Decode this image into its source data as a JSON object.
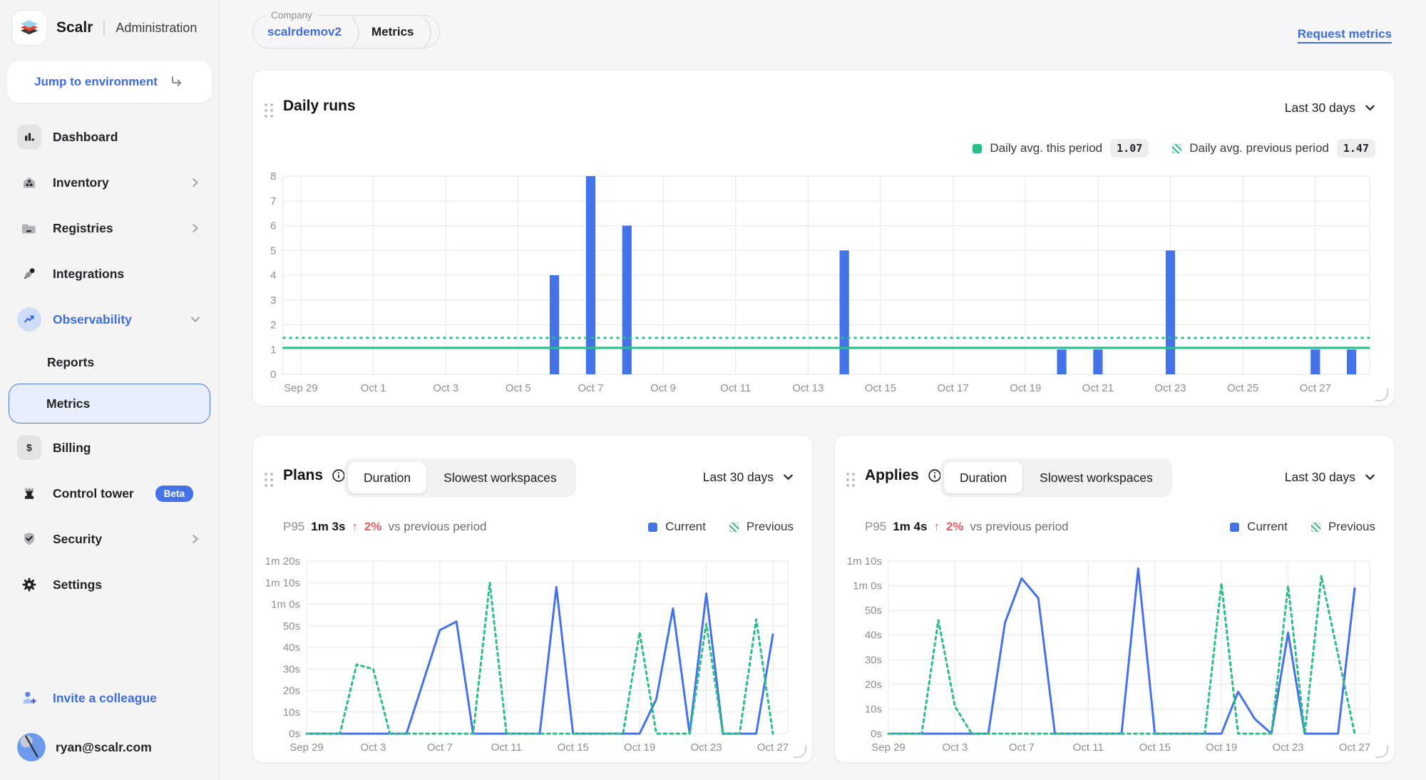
{
  "app": {
    "brand": "Scalr",
    "section": "Administration"
  },
  "sidebar": {
    "jump": {
      "label": "Jump to environment"
    },
    "items": [
      {
        "label": "Dashboard"
      },
      {
        "label": "Inventory"
      },
      {
        "label": "Registries"
      },
      {
        "label": "Integrations"
      },
      {
        "label": "Observability"
      },
      {
        "label": "Reports"
      },
      {
        "label": "Metrics"
      },
      {
        "label": "Billing"
      },
      {
        "label": "Control tower",
        "badge": "Beta"
      },
      {
        "label": "Security"
      },
      {
        "label": "Settings"
      }
    ],
    "invite": {
      "label": "Invite a colleague"
    },
    "user": {
      "email": "ryan@scalr.com"
    }
  },
  "topbar": {
    "breadcrumb": {
      "group_label": "Company",
      "account": "scalrdemov2",
      "page": "Metrics"
    },
    "request_link": "Request metrics"
  },
  "cards": {
    "daily_runs": {
      "title": "Daily runs",
      "range": "Last 30 days",
      "legend": [
        {
          "label": "Daily avg. this period",
          "value": "1.07"
        },
        {
          "label": "Daily avg. previous period",
          "value": "1.47"
        }
      ]
    },
    "plans": {
      "title": "Plans",
      "tabs": [
        "Duration",
        "Slowest workspaces"
      ],
      "active_tab": "Duration",
      "range": "Last 30 days",
      "stat": {
        "metric": "P95",
        "value": "1m 3s",
        "delta_arrow": "↑",
        "delta": "2%",
        "suffix": "vs previous period"
      },
      "legend": [
        {
          "label": "Current"
        },
        {
          "label": "Previous"
        }
      ]
    },
    "applies": {
      "title": "Applies",
      "tabs": [
        "Duration",
        "Slowest workspaces"
      ],
      "active_tab": "Duration",
      "range": "Last 30 days",
      "stat": {
        "metric": "P95",
        "value": "1m 4s",
        "delta_arrow": "↑",
        "delta": "2%",
        "suffix": "vs previous period"
      },
      "legend": [
        {
          "label": "Current"
        },
        {
          "label": "Previous"
        }
      ]
    }
  },
  "colors": {
    "accent_blue": "#4472e8",
    "link_blue": "#3f6ce0",
    "green": "#2bbd8a",
    "red": "#ef5661",
    "grid": "#e7e7e9",
    "axis_text": "#8e8e93"
  },
  "chart_data": [
    {
      "id": "daily-runs",
      "type": "bar",
      "title": "Daily runs",
      "xlabel": "",
      "ylabel": "",
      "grid": true,
      "legend_position": "top-right",
      "categories": [
        "Sep 29",
        "Sep 30",
        "Oct 1",
        "Oct 2",
        "Oct 3",
        "Oct 4",
        "Oct 5",
        "Oct 6",
        "Oct 7",
        "Oct 8",
        "Oct 9",
        "Oct 10",
        "Oct 11",
        "Oct 12",
        "Oct 13",
        "Oct 14",
        "Oct 15",
        "Oct 16",
        "Oct 17",
        "Oct 18",
        "Oct 19",
        "Oct 20",
        "Oct 21",
        "Oct 22",
        "Oct 23",
        "Oct 24",
        "Oct 25",
        "Oct 26",
        "Oct 27",
        "Oct 28"
      ],
      "values": [
        0,
        0,
        0,
        0,
        0,
        0,
        0,
        4,
        8,
        6,
        0,
        0,
        0,
        0,
        0,
        5,
        0,
        0,
        0,
        0,
        0,
        1,
        1,
        0,
        5,
        0,
        0,
        0,
        1,
        1
      ],
      "bar_color": "#4472e8",
      "ylim": [
        0,
        8
      ],
      "yticks": [
        [
          0,
          "0"
        ],
        [
          1,
          "1"
        ],
        [
          2,
          "2"
        ],
        [
          3,
          "3"
        ],
        [
          4,
          "4"
        ],
        [
          5,
          "5"
        ],
        [
          6,
          "6"
        ],
        [
          7,
          "7"
        ],
        [
          8,
          "8"
        ]
      ],
      "tick_every": 2,
      "reference_lines": [
        {
          "label": "Daily avg. this period",
          "value": 1.07,
          "style": "solid",
          "color": "#2bbd8a"
        },
        {
          "label": "Daily avg. previous period",
          "value": 1.47,
          "style": "dotted",
          "color": "#2bbd8a"
        }
      ]
    },
    {
      "id": "plans-duration",
      "type": "line",
      "title": "Plans — Duration (P95 seconds)",
      "xlabel": "",
      "ylabel": "",
      "grid": true,
      "legend_position": "top-right",
      "x": [
        "Sep 29",
        "Sep 30",
        "Oct 1",
        "Oct 2",
        "Oct 3",
        "Oct 4",
        "Oct 5",
        "Oct 6",
        "Oct 7",
        "Oct 8",
        "Oct 9",
        "Oct 10",
        "Oct 11",
        "Oct 12",
        "Oct 13",
        "Oct 14",
        "Oct 15",
        "Oct 16",
        "Oct 17",
        "Oct 18",
        "Oct 19",
        "Oct 20",
        "Oct 21",
        "Oct 22",
        "Oct 23",
        "Oct 24",
        "Oct 25",
        "Oct 26",
        "Oct 27"
      ],
      "series": [
        {
          "name": "Current",
          "style": "solid",
          "color": "#4472e8",
          "values": [
            0,
            0,
            0,
            0,
            0,
            0,
            0,
            24,
            48,
            52,
            0,
            0,
            0,
            0,
            0,
            68,
            0,
            0,
            0,
            0,
            0,
            16,
            58,
            0,
            65,
            0,
            0,
            0,
            46
          ]
        },
        {
          "name": "Previous",
          "style": "dotted",
          "color": "#2bbd8a",
          "values": [
            0,
            0,
            0,
            32,
            30,
            0,
            0,
            0,
            0,
            0,
            0,
            70,
            0,
            0,
            0,
            0,
            0,
            0,
            0,
            0,
            47,
            0,
            0,
            0,
            51,
            0,
            0,
            53,
            0
          ]
        }
      ],
      "ylim": [
        0,
        80
      ],
      "yticks": [
        [
          0,
          "0s"
        ],
        [
          10,
          "10s"
        ],
        [
          20,
          "20s"
        ],
        [
          30,
          "30s"
        ],
        [
          40,
          "40s"
        ],
        [
          50,
          "50s"
        ],
        [
          60,
          "1m 0s"
        ],
        [
          70,
          "1m 10s"
        ],
        [
          80,
          "1m 20s"
        ]
      ],
      "tick_every": 4
    },
    {
      "id": "applies-duration",
      "type": "line",
      "title": "Applies — Duration (P95 seconds)",
      "xlabel": "",
      "ylabel": "",
      "grid": true,
      "legend_position": "top-right",
      "x": [
        "Sep 29",
        "Sep 30",
        "Oct 1",
        "Oct 2",
        "Oct 3",
        "Oct 4",
        "Oct 5",
        "Oct 6",
        "Oct 7",
        "Oct 8",
        "Oct 9",
        "Oct 10",
        "Oct 11",
        "Oct 12",
        "Oct 13",
        "Oct 14",
        "Oct 15",
        "Oct 16",
        "Oct 17",
        "Oct 18",
        "Oct 19",
        "Oct 20",
        "Oct 21",
        "Oct 22",
        "Oct 23",
        "Oct 24",
        "Oct 25",
        "Oct 26",
        "Oct 27"
      ],
      "series": [
        {
          "name": "Current",
          "style": "solid",
          "color": "#4472e8",
          "values": [
            0,
            0,
            0,
            0,
            0,
            0,
            0,
            45,
            63,
            55,
            0,
            0,
            0,
            0,
            0,
            67,
            0,
            0,
            0,
            0,
            0,
            17,
            6,
            0,
            41,
            0,
            0,
            0,
            59
          ]
        },
        {
          "name": "Previous",
          "style": "dotted",
          "color": "#2bbd8a",
          "values": [
            0,
            0,
            0,
            46,
            11,
            0,
            0,
            0,
            0,
            0,
            0,
            0,
            0,
            0,
            0,
            0,
            0,
            0,
            0,
            0,
            61,
            0,
            0,
            0,
            60,
            0,
            64,
            32,
            0
          ]
        }
      ],
      "ylim": [
        0,
        70
      ],
      "yticks": [
        [
          0,
          "0s"
        ],
        [
          10,
          "10s"
        ],
        [
          20,
          "20s"
        ],
        [
          30,
          "30s"
        ],
        [
          40,
          "40s"
        ],
        [
          50,
          "50s"
        ],
        [
          60,
          "1m 0s"
        ],
        [
          70,
          "1m 10s"
        ]
      ],
      "tick_every": 4
    }
  ]
}
